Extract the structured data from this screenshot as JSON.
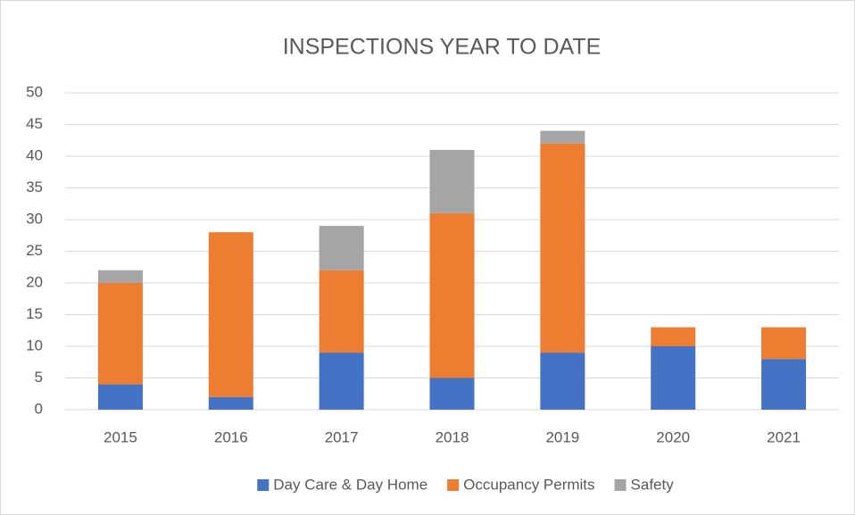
{
  "chart_data": {
    "type": "stacked_bar",
    "title": "INSPECTIONS YEAR TO DATE",
    "categories": [
      "2015",
      "2016",
      "2017",
      "2018",
      "2019",
      "2020",
      "2021"
    ],
    "series": [
      {
        "name": "Day Care & Day Home",
        "color": "#4472c4",
        "values": [
          4,
          2,
          9,
          5,
          9,
          10,
          8
        ]
      },
      {
        "name": "Occupancy Permits",
        "color": "#ed7d31",
        "values": [
          16,
          26,
          13,
          26,
          33,
          3,
          5
        ]
      },
      {
        "name": "Safety",
        "color": "#a5a5a5",
        "values": [
          2,
          0,
          7,
          10,
          2,
          0,
          0
        ]
      }
    ],
    "ylim": [
      0,
      50
    ],
    "yticks": [
      0,
      5,
      10,
      15,
      20,
      25,
      30,
      35,
      40,
      45,
      50
    ],
    "grid": true,
    "legend": "bottom"
  }
}
